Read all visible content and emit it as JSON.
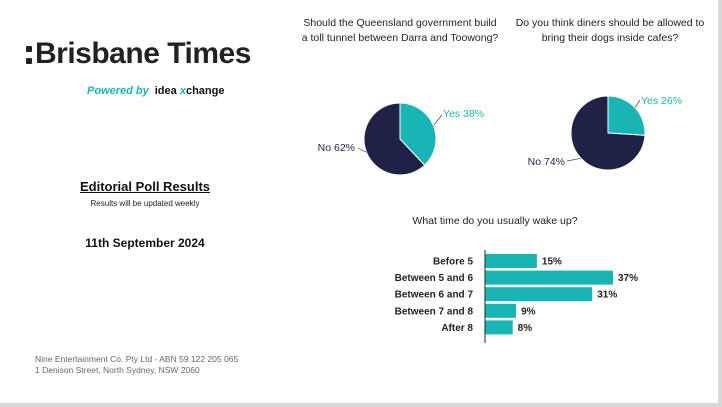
{
  "brand": {
    "name": "Brisbane Times",
    "powered_by": "Powered by",
    "partner_idea": "idea",
    "partner_x": "x",
    "partner_change": "change"
  },
  "poll": {
    "title": "Editorial Poll Results",
    "subtitle": "Results will be updated weekly",
    "date": "11th September 2024"
  },
  "footer": {
    "line1": "Nine Entertainment Co. Pty Ltd - ABN 59 122 205 065",
    "line2": "1 Denison Street, North Sydney, NSW 2060"
  },
  "colors": {
    "navy": "#1f2147",
    "teal": "#19b5b5"
  },
  "chart_data": [
    {
      "type": "pie",
      "title": "Should the Queensland government build a toll tunnel between Darra and Toowong?",
      "slices": [
        {
          "label": "Yes 38%",
          "value": 38,
          "color": "#19b5b5"
        },
        {
          "label": "No 62%",
          "value": 62,
          "color": "#1f2147"
        }
      ]
    },
    {
      "type": "pie",
      "title": "Do you think diners should be allowed to bring their dogs inside cafes?",
      "slices": [
        {
          "label": "Yes 26%",
          "value": 26,
          "color": "#19b5b5"
        },
        {
          "label": "No 74%",
          "value": 74,
          "color": "#1f2147"
        }
      ]
    },
    {
      "type": "bar",
      "orientation": "horizontal",
      "title": "What time do you usually wake up?",
      "categories": [
        "Before 5",
        "Between 5 and 6",
        "Between 6 and 7",
        "Between 7 and 8",
        "After 8"
      ],
      "values": [
        15,
        37,
        31,
        9,
        8
      ],
      "value_labels": [
        "15%",
        "37%",
        "31%",
        "9%",
        "8%"
      ],
      "color": "#19b5b5"
    }
  ]
}
